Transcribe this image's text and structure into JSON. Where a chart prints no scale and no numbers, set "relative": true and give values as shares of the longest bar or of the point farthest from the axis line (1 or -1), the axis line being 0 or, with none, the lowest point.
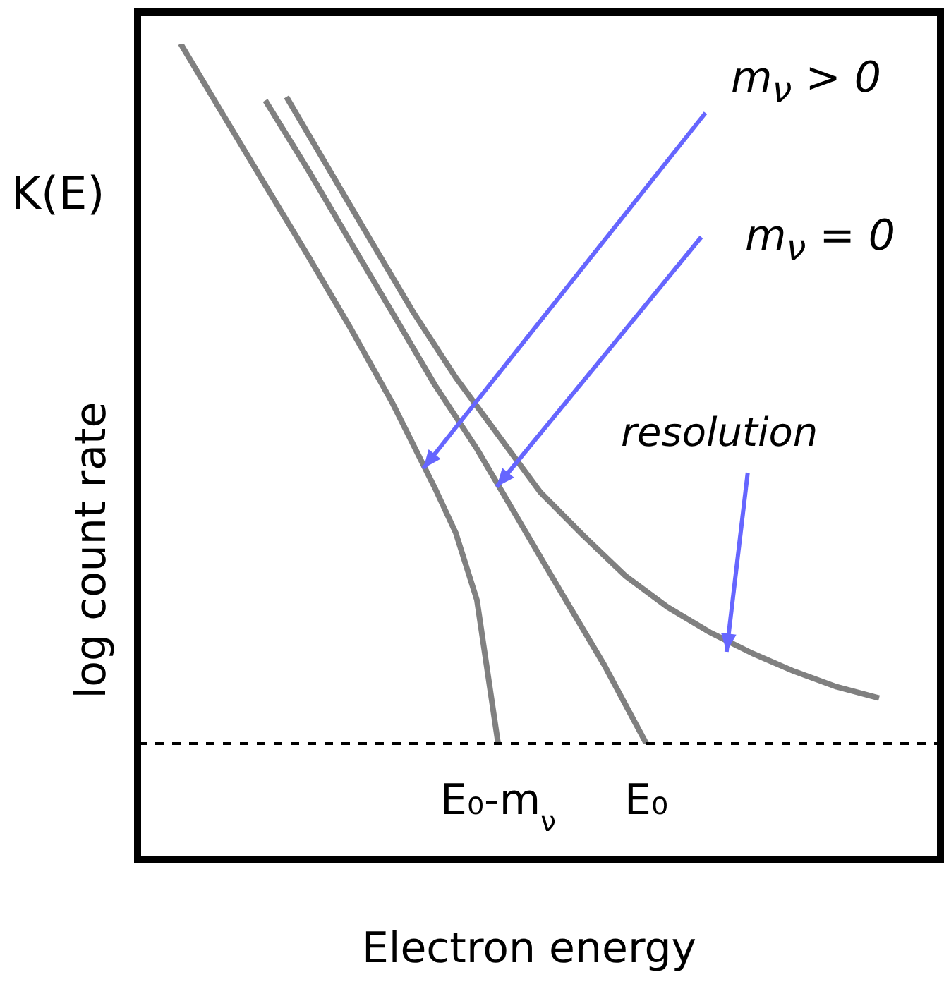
{
  "chart_data": {
    "type": "line",
    "relative": true,
    "xlabel": "Electron energy",
    "ylabel": "log count rate",
    "categories": [
      null,
      null,
      null,
      null,
      null,
      null,
      null,
      null,
      null,
      null,
      null,
      null,
      null,
      null,
      null,
      null,
      null,
      "E₀-m$_{ν}$",
      null,
      null,
      null,
      null,
      null,
      null,
      "E₀",
      null,
      null,
      null,
      null,
      null,
      null,
      null,
      null,
      null,
      null,
      null,
      null,
      null,
      null
    ],
    "series": [
      {
        "color": "#808080",
        "values": [
          null,
          null,
          1,
          null,
          0.899,
          null,
          0.798,
          null,
          0.698,
          null,
          0.595,
          null,
          0.487,
          null,
          0.366,
          0.301,
          0.205,
          0,
          null,
          null,
          null,
          null,
          null,
          null,
          null,
          null,
          null,
          null,
          null,
          null,
          null,
          null,
          null,
          null,
          null,
          null,
          null,
          null,
          null
        ]
      },
      {
        "color": "#808080",
        "values": [
          null,
          null,
          null,
          null,
          null,
          null,
          0.919,
          null,
          0.821,
          null,
          0.718,
          null,
          0.616,
          null,
          0.513,
          null,
          0.421,
          null,
          0.318,
          null,
          0.215,
          null,
          0.113,
          null,
          0,
          null,
          null,
          null,
          null,
          null,
          null,
          null,
          null,
          null,
          null,
          null,
          null,
          null,
          null
        ]
      },
      {
        "color": "#808080",
        "values": [
          null,
          null,
          null,
          null,
          null,
          null,
          null,
          0.924,
          null,
          0.821,
          null,
          0.718,
          null,
          0.616,
          null,
          0.523,
          null,
          0.441,
          null,
          0.359,
          null,
          0.298,
          null,
          0.24,
          null,
          0.195,
          null,
          0.159,
          null,
          0.129,
          null,
          0.103,
          null,
          0.081,
          null,
          0.065,
          null,
          null,
          null
        ]
      }
    ],
    "annotations": [
      "K(E)",
      "m$_{ν}$ > 0",
      "m$_{ν}$ = 0",
      "resolution"
    ]
  }
}
